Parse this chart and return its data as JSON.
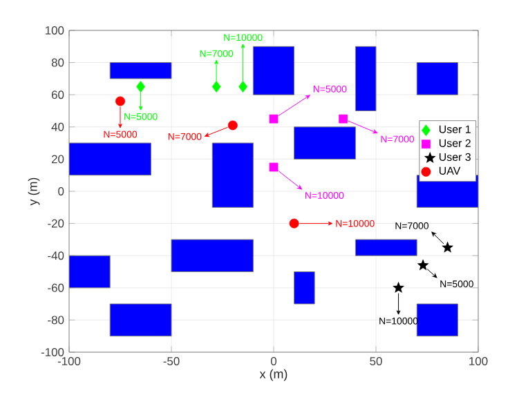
{
  "chart_data": {
    "type": "scatter",
    "xlabel": "x (m)",
    "ylabel": "y (m)",
    "xlim": [
      -100,
      100
    ],
    "ylim": [
      -100,
      100
    ],
    "xticks": [
      -100,
      -50,
      0,
      50,
      100
    ],
    "yticks": [
      -100,
      -80,
      -60,
      -40,
      -20,
      0,
      20,
      40,
      60,
      80,
      100
    ],
    "grid": true,
    "legend": "right",
    "series": [
      {
        "name": "User 1",
        "color": "#00ff00",
        "marker": "diamond",
        "x": [
          -65,
          -28,
          -15
        ],
        "values": [
          65,
          65,
          65
        ]
      },
      {
        "name": "User 2",
        "color": "#ff00ff",
        "marker": "square",
        "x": [
          0,
          34,
          0
        ],
        "values": [
          45,
          45,
          15
        ]
      },
      {
        "name": "User 3",
        "color": "#000000",
        "marker": "star",
        "x": [
          85,
          73,
          61
        ],
        "values": [
          -35,
          -46,
          -60
        ]
      },
      {
        "name": "UAV",
        "color": "#ff0000",
        "marker": "circle",
        "x": [
          -75,
          -20,
          10
        ],
        "values": [
          56,
          41,
          -20
        ]
      }
    ],
    "annotations": [
      "N=5000",
      "N=7000",
      "N=10000",
      "N=5000",
      "N=7000",
      "N=10000",
      "N=7000",
      "N=5000",
      "N=10000",
      "N=5000",
      "N=7000",
      "N=10000"
    ]
  }
}
